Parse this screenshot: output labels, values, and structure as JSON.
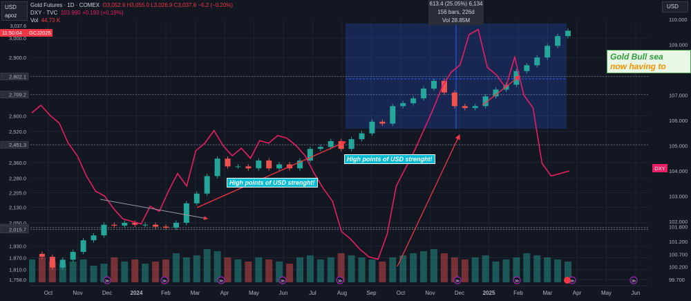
{
  "header": {
    "left_currency": "USD",
    "user": "apoz",
    "countdown": "11:50:04",
    "symbol_tag": "GCJ2025",
    "line1_title": "Gold Futures · 1D · COMEX",
    "line1_ohlc": "O3,052.6 H3,055.0 L3,026.9 C3,037.6 −6.2 (−0.20%)",
    "line2_title": "DXY · TVC",
    "line2_values": "103.990 +0.193 (+0.19%)",
    "line3_label": "Vol",
    "line3_value": "44.73 K",
    "right_currency": "USD"
  },
  "measure_tooltip": {
    "line1": "613.4 (25.05%) 6,134",
    "line2": "156 bars, 226d",
    "line3": "Vol 28.85M"
  },
  "annotations": {
    "gold_note_line1": "Gold  Bull sea",
    "gold_note_line2": "now having to",
    "usd_note_1": "High points of USD strenght!",
    "usd_note_2": "High points of USD strenght!"
  },
  "colors": {
    "background": "#131722",
    "gold_up": "#26a69a",
    "gold_down": "#ef5350",
    "dxy_line": "#e91e63",
    "measure_box": "#2962ff",
    "arrow": "#f23645"
  },
  "chart_data": {
    "type": "candlestick+line",
    "left_axis_ticks": [
      "3,000.0",
      "2,900.0",
      "2,802.1",
      "2,709.2",
      "2,600.0",
      "2,520.0",
      "2,451.3",
      "2,360.0",
      "2,280.0",
      "2,205.0",
      "2,130.0",
      "2,050.0",
      "2,025.2",
      "2,015.7",
      "1,930.0",
      "1,870.0",
      "1,810.0",
      "1,758.0"
    ],
    "right_axis_ticks": [
      "110.000",
      "109.000",
      "108.000",
      "107.000",
      "106.000",
      "105.000",
      "104.000",
      "103.000",
      "102.000",
      "101.800",
      "101.200",
      "100.700",
      "100.200",
      "99.700"
    ],
    "x_ticks": [
      "Oct",
      "Nov",
      "Dec",
      "2024",
      "Feb",
      "Mar",
      "Apr",
      "May",
      "Jun",
      "Jul",
      "Aug",
      "Sep",
      "Oct",
      "Nov",
      "Dec",
      "2025",
      "Feb",
      "Mar",
      "Apr",
      "May",
      "Jun"
    ],
    "dxy_tag": "DXY",
    "gold_last_tag": "3,037.6",
    "gold_close": [
      1890,
      1875,
      1820,
      1860,
      1900,
      1960,
      1985,
      2040,
      2035,
      2050,
      2040,
      2040,
      2030,
      2025,
      2050,
      2150,
      2200,
      2290,
      2380,
      2340,
      2340,
      2330,
      2370,
      2330,
      2350,
      2330,
      2370,
      2430,
      2440,
      2470,
      2430,
      2480,
      2510,
      2570,
      2560,
      2650,
      2665,
      2690,
      2740,
      2780,
      2720,
      2650,
      2640,
      2650,
      2700,
      2735,
      2760,
      2830,
      2860,
      2900,
      2960,
      3010,
      3037.6
    ],
    "dxy": [
      106.3,
      106.6,
      106.2,
      105.9,
      105.1,
      104.6,
      103.8,
      103.2,
      103.0,
      102.5,
      102.1,
      102.0,
      101.9,
      102.6,
      102.4,
      103.2,
      103.9,
      103.4,
      104.8,
      105.1,
      105.6,
      105.0,
      104.6,
      104.9,
      104.5,
      105.2,
      105.1,
      105.4,
      105.3,
      105.0,
      104.6,
      103.9,
      103.3,
      102.8,
      101.6,
      101.3,
      100.9,
      100.6,
      100.5,
      101.5,
      103.4,
      104.1,
      104.8,
      105.6,
      106.4,
      107.3,
      107.9,
      108.2,
      109.4,
      109.6,
      108.1,
      107.8,
      107.3,
      108.5,
      107.0,
      106.5,
      104.3,
      103.8,
      103.9,
      104.0
    ],
    "volume_relative": [
      0.55,
      0.6,
      0.5,
      0.45,
      0.5,
      0.55,
      0.4,
      0.45,
      0.6,
      0.5,
      0.55,
      0.45,
      0.5,
      0.55,
      0.7,
      0.6,
      0.65,
      0.8,
      0.75,
      0.6,
      0.55,
      0.5,
      0.6,
      0.55,
      0.5,
      0.45,
      0.6,
      0.65,
      0.55,
      0.6,
      0.7,
      0.65,
      0.6,
      0.55,
      0.5,
      0.6,
      0.65,
      0.7,
      0.75,
      0.8,
      0.7,
      0.6,
      0.55,
      0.6,
      0.65,
      0.5,
      0.55,
      0.6,
      0.7,
      0.65,
      0.6,
      0.55,
      0.5
    ],
    "grid": true
  }
}
